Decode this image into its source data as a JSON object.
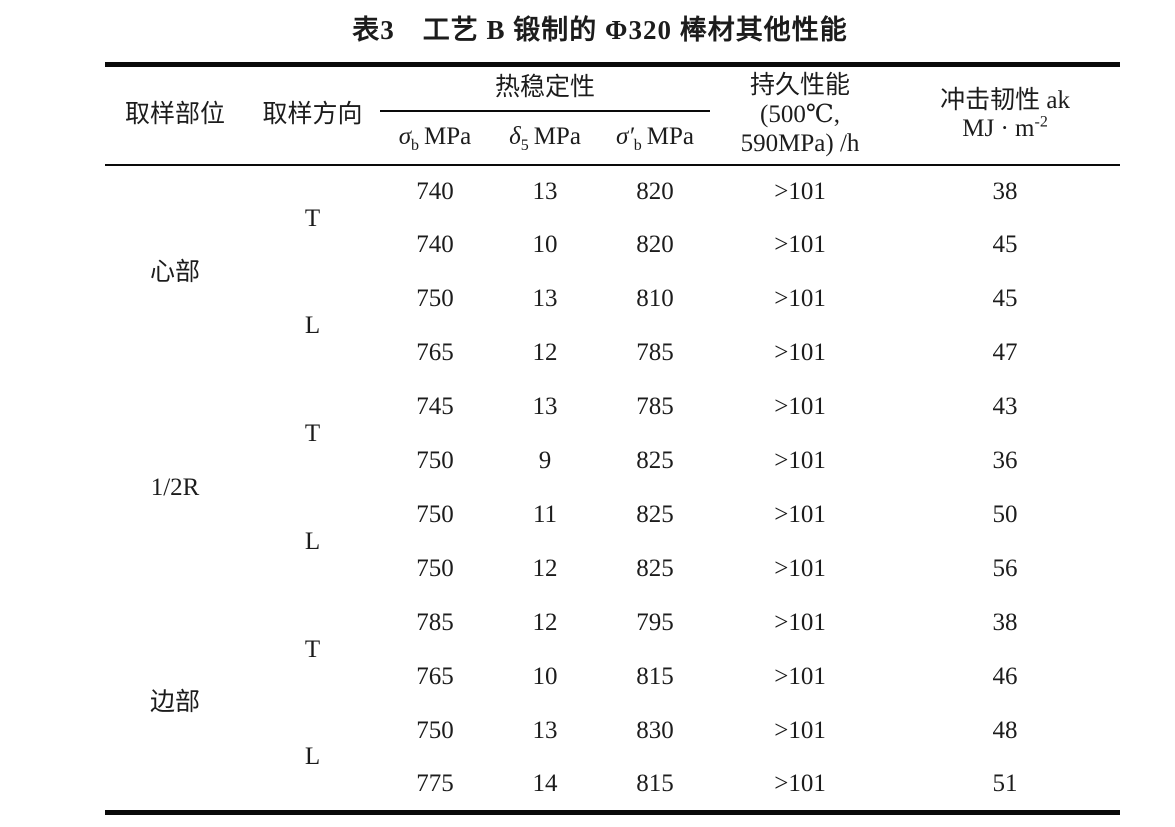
{
  "title": "表3　工艺 B 锻制的 Φ320 棒材其他性能",
  "table": {
    "header": {
      "col_location": "取样部位",
      "col_direction": "取样方向",
      "group_thermal": "热稳定性",
      "sub_sigma_b": {
        "sym": "σ",
        "sub": "b",
        "unit": "MPa"
      },
      "sub_delta_5": {
        "sym": "δ",
        "sub": "5",
        "unit": "MPa"
      },
      "sub_sigma_b_prime": {
        "sym": "σ′",
        "sub": "b",
        "unit": "MPa"
      },
      "col_endurance": {
        "line1": "持久性能",
        "line2": "(500℃,",
        "line3": "590MPa) /h"
      },
      "col_impact": {
        "line1": "冲击韧性 ak",
        "line2_base": "MJ · m",
        "line2_sup": "-2"
      }
    },
    "groups": [
      {
        "location": "心部",
        "directions": [
          {
            "dir": "T",
            "rows": [
              [
                "740",
                "13",
                "820",
                ">101",
                "38"
              ],
              [
                "740",
                "10",
                "820",
                ">101",
                "45"
              ]
            ]
          },
          {
            "dir": "L",
            "rows": [
              [
                "750",
                "13",
                "810",
                ">101",
                "45"
              ],
              [
                "765",
                "12",
                "785",
                ">101",
                "47"
              ]
            ]
          }
        ]
      },
      {
        "location": "1/2R",
        "directions": [
          {
            "dir": "T",
            "rows": [
              [
                "745",
                "13",
                "785",
                ">101",
                "43"
              ],
              [
                "750",
                "9",
                "825",
                ">101",
                "36"
              ]
            ]
          },
          {
            "dir": "L",
            "rows": [
              [
                "750",
                "11",
                "825",
                ">101",
                "50"
              ],
              [
                "750",
                "12",
                "825",
                ">101",
                "56"
              ]
            ]
          }
        ]
      },
      {
        "location": "边部",
        "directions": [
          {
            "dir": "T",
            "rows": [
              [
                "785",
                "12",
                "795",
                ">101",
                "38"
              ],
              [
                "765",
                "10",
                "815",
                ">101",
                "46"
              ]
            ]
          },
          {
            "dir": "L",
            "rows": [
              [
                "750",
                "13",
                "830",
                ">101",
                "48"
              ],
              [
                "775",
                "14",
                "815",
                ">101",
                "51"
              ]
            ]
          }
        ]
      }
    ]
  }
}
